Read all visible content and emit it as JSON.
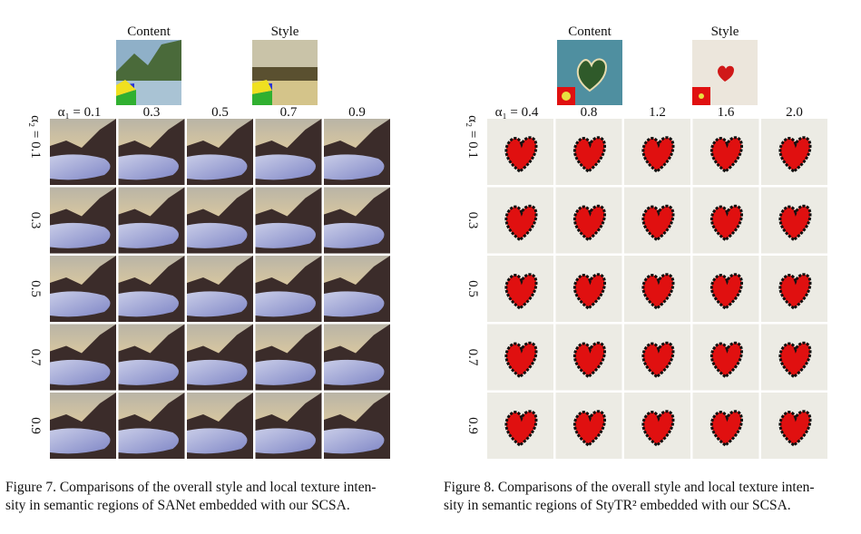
{
  "figures": [
    {
      "content_label": "Content",
      "style_label": "Style",
      "column_labels": [
        "α₁ = 0.1",
        "0.3",
        "0.5",
        "0.7",
        "0.9"
      ],
      "row_labels": [
        "α₂ = 0.1",
        "0.3",
        "0.5",
        "0.7",
        "0.9"
      ],
      "caption_lines": [
        "Figure 7. Comparisons of the overall style and local texture inten-",
        "sity in semantic regions of SANet embedded with our SCSA."
      ]
    },
    {
      "content_label": "Content",
      "style_label": "Style",
      "column_labels": [
        "α₁ = 0.4",
        "0.8",
        "1.2",
        "1.6",
        "2.0"
      ],
      "row_labels": [
        "α₂ = 0.1",
        "0.3",
        "0.5",
        "0.7",
        "0.9"
      ],
      "caption_lines": [
        "Figure 8. Comparisons of the overall style and local texture inten-",
        "sity in semantic regions of StyTR² embedded with our SCSA."
      ]
    }
  ]
}
